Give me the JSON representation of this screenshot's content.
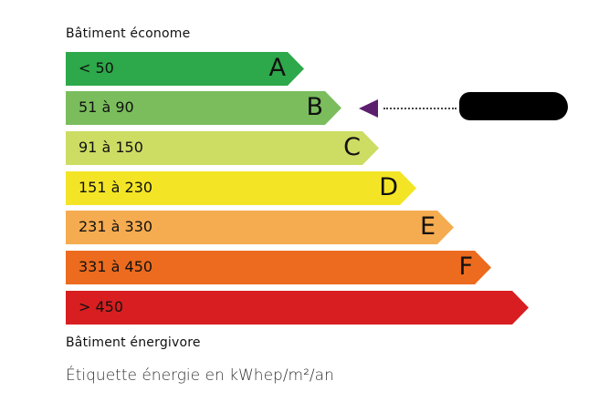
{
  "top_label": "Bâtiment économe",
  "bottom_label": "Bâtiment énergivore",
  "footer": "Étiquette énergie en kWhep/m²/an",
  "classes": [
    {
      "range": "< 50",
      "letter": "A",
      "color": "#2da84a"
    },
    {
      "range": "51 à 90",
      "letter": "B",
      "color": "#7bbd5d"
    },
    {
      "range": "91 à 150",
      "letter": "C",
      "color": "#cddc63"
    },
    {
      "range": "151 à 230",
      "letter": "D",
      "color": "#f3e526"
    },
    {
      "range": "231 à 330",
      "letter": "E",
      "color": "#f5ab50"
    },
    {
      "range": "331 à 450",
      "letter": "F",
      "color": "#ec6b1e"
    },
    {
      "range": "> 450",
      "letter": "",
      "color": "#d81e20"
    }
  ],
  "indicator": {
    "class": "B",
    "color": "#5b1f6e",
    "value_redacted": true
  }
}
